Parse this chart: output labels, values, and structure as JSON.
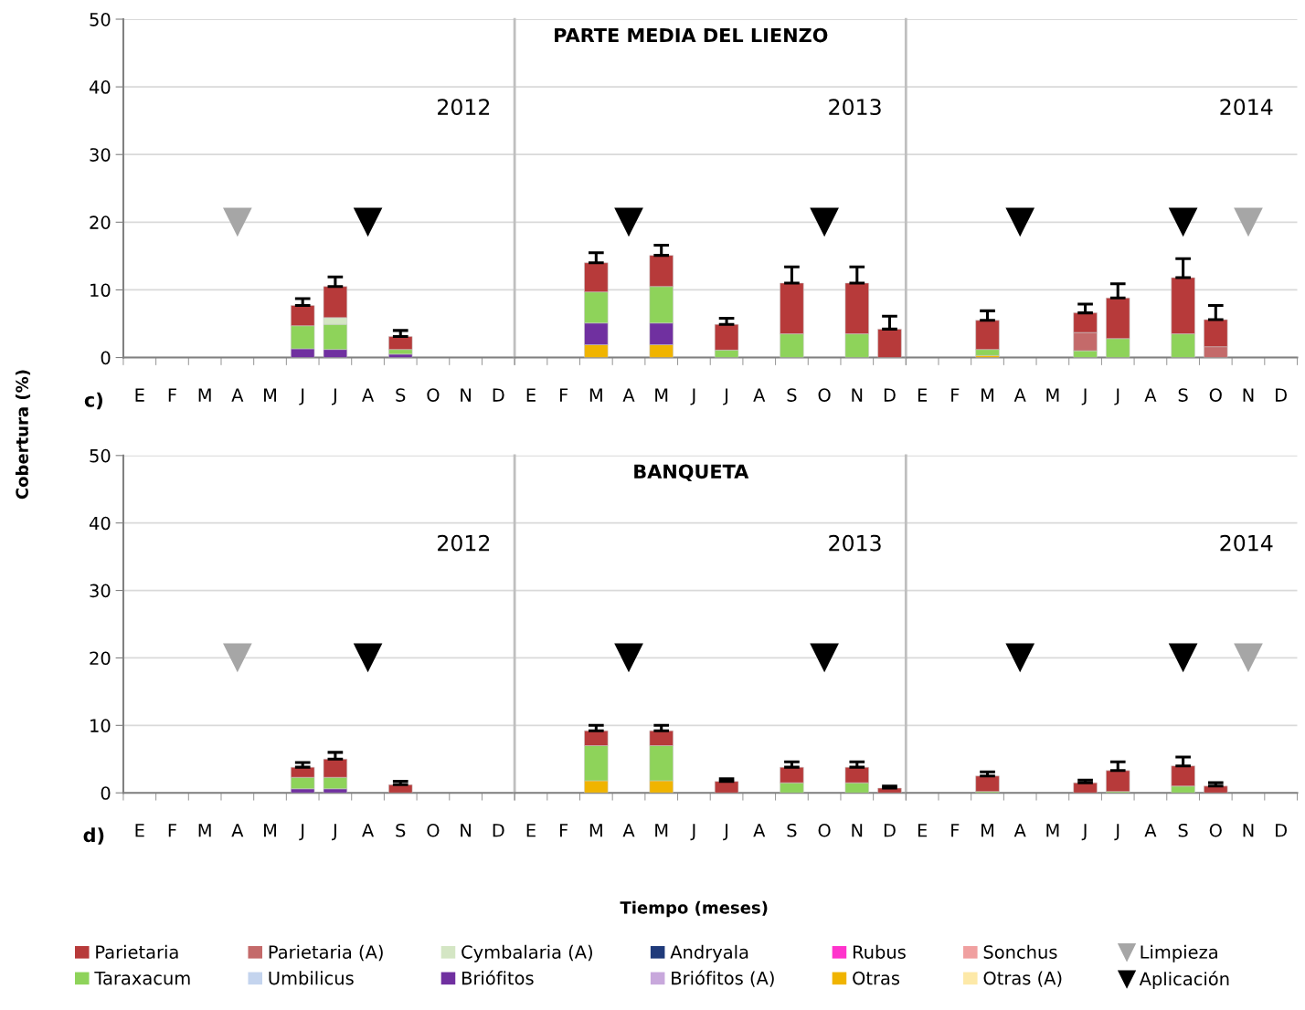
{
  "chart_data": [
    {
      "type": "bar",
      "stacked": true,
      "ylabel": "Cobertura (%)",
      "annotations": [
        "c)",
        "2012"
      ],
      "categories": [
        "E",
        "F",
        "M",
        "A",
        "M",
        "J",
        "J",
        "A",
        "S",
        "O",
        "N",
        "D"
      ],
      "ylim": [
        0,
        50
      ],
      "yticks": [
        0,
        10,
        20,
        30,
        40,
        50
      ],
      "grid": "y",
      "series": [
        {
          "color": "#7030a0",
          "values": [
            null,
            null,
            null,
            null,
            null,
            1.3,
            1.2,
            null,
            0.5,
            null,
            null,
            null
          ]
        },
        {
          "color": "#8ed35a",
          "values": [
            null,
            null,
            null,
            null,
            null,
            3.4,
            3.7,
            null,
            0.7,
            null,
            null,
            null
          ]
        },
        {
          "color": "#d4e6c4",
          "values": [
            null,
            null,
            null,
            null,
            null,
            null,
            1.0,
            null,
            null,
            null,
            null,
            null
          ]
        },
        {
          "color": "#b73a3a",
          "values": [
            null,
            null,
            null,
            null,
            null,
            3.0,
            4.6,
            null,
            1.9,
            null,
            null,
            null
          ],
          "errors": [
            null,
            null,
            null,
            null,
            null,
            [
              7.7,
              8.7
            ],
            [
              10.5,
              11.9
            ],
            null,
            [
              3.1,
              4.0
            ],
            null,
            null,
            null
          ]
        },
        {
          "type": "scatter",
          "marker": "triangle_down",
          "color": "#a6a6a6",
          "values": [
            null,
            null,
            null,
            20,
            null,
            null,
            null,
            null,
            null,
            null,
            null,
            null
          ]
        },
        {
          "type": "scatter",
          "marker": "triangle_down",
          "color": "#000000",
          "values": [
            null,
            null,
            null,
            null,
            null,
            null,
            null,
            20,
            null,
            null,
            null,
            null
          ]
        }
      ]
    },
    {
      "type": "bar",
      "stacked": true,
      "title": "PARTE MEDIA DEL LIENZO",
      "annotations": [
        "2013"
      ],
      "tick_labels": "x",
      "categories": [
        "E",
        "F",
        "M",
        "A",
        "M",
        "J",
        "J",
        "A",
        "S",
        "O",
        "N",
        "D"
      ],
      "ylim": [
        0,
        50
      ],
      "yticks": [
        0,
        10,
        20,
        30,
        40,
        50
      ],
      "grid": "y",
      "series": [
        {
          "color": "#f0b400",
          "values": [
            null,
            null,
            1.9,
            null,
            1.9,
            null,
            null,
            null,
            null,
            null,
            null,
            null
          ]
        },
        {
          "color": "#7030a0",
          "values": [
            null,
            null,
            3.2,
            null,
            3.2,
            null,
            null,
            null,
            null,
            null,
            null,
            null
          ]
        },
        {
          "color": "#8ed35a",
          "values": [
            null,
            null,
            4.6,
            null,
            5.4,
            null,
            1.1,
            null,
            3.5,
            null,
            3.5,
            null
          ]
        },
        {
          "color": "#b73a3a",
          "values": [
            null,
            null,
            4.3,
            null,
            4.6,
            null,
            3.8,
            null,
            7.5,
            null,
            7.5,
            4.2
          ],
          "errors": [
            null,
            null,
            [
              14.0,
              15.5
            ],
            null,
            [
              15.1,
              16.6
            ],
            null,
            [
              4.9,
              5.8
            ],
            null,
            [
              11.0,
              13.4
            ],
            null,
            [
              11.0,
              13.4
            ],
            [
              4.2,
              6.1
            ]
          ]
        },
        {
          "type": "scatter",
          "marker": "triangle_down",
          "color": "#000000",
          "values": [
            null,
            null,
            null,
            20,
            null,
            null,
            null,
            null,
            null,
            20,
            null,
            null
          ]
        }
      ]
    },
    {
      "type": "bar",
      "stacked": true,
      "annotations": [
        "2014"
      ],
      "tick_labels": "x",
      "categories": [
        "E",
        "F",
        "M",
        "A",
        "M",
        "J",
        "J",
        "A",
        "S",
        "O",
        "N",
        "D"
      ],
      "ylim": [
        0,
        50
      ],
      "yticks": [
        0,
        10,
        20,
        30,
        40,
        50
      ],
      "grid": "y",
      "series": [
        {
          "color": "#f0b400",
          "values": [
            null,
            null,
            0.3,
            null,
            null,
            null,
            null,
            null,
            null,
            null,
            null,
            null
          ]
        },
        {
          "color": "#8ed35a",
          "values": [
            null,
            null,
            0.9,
            null,
            null,
            1.0,
            2.8,
            null,
            3.5,
            null,
            null,
            null
          ]
        },
        {
          "color": "#c46a6a",
          "values": [
            null,
            null,
            null,
            null,
            null,
            2.7,
            null,
            null,
            null,
            1.6,
            null,
            null
          ]
        },
        {
          "color": "#b73a3a",
          "values": [
            null,
            null,
            4.3,
            null,
            null,
            2.9,
            6.0,
            null,
            8.3,
            4.0,
            null,
            null
          ],
          "errors": [
            null,
            null,
            [
              5.5,
              6.9
            ],
            null,
            null,
            [
              6.6,
              7.9
            ],
            [
              8.8,
              10.9
            ],
            null,
            [
              11.8,
              14.6
            ],
            [
              5.6,
              7.7
            ],
            null,
            null
          ]
        },
        {
          "type": "scatter",
          "marker": "triangle_down",
          "color": "#a6a6a6",
          "values": [
            null,
            null,
            null,
            null,
            null,
            null,
            null,
            null,
            null,
            null,
            20,
            null
          ]
        },
        {
          "type": "scatter",
          "marker": "triangle_down",
          "color": "#000000",
          "values": [
            null,
            null,
            null,
            20,
            null,
            null,
            null,
            null,
            20,
            null,
            null,
            null
          ]
        }
      ]
    },
    {
      "type": "bar",
      "stacked": true,
      "annotations": [
        "d)",
        "2012"
      ],
      "categories": [
        "E",
        "F",
        "M",
        "A",
        "M",
        "J",
        "J",
        "A",
        "S",
        "O",
        "N",
        "D"
      ],
      "ylim": [
        0,
        50
      ],
      "yticks": [
        0,
        10,
        20,
        30,
        40,
        50
      ],
      "grid": "y",
      "series": [
        {
          "color": "#7030a0",
          "values": [
            null,
            null,
            null,
            null,
            null,
            0.6,
            0.6,
            null,
            null,
            null,
            null,
            null
          ]
        },
        {
          "color": "#8ed35a",
          "values": [
            null,
            null,
            null,
            null,
            null,
            1.7,
            1.7,
            null,
            null,
            null,
            null,
            null
          ]
        },
        {
          "color": "#b73a3a",
          "values": [
            null,
            null,
            null,
            null,
            null,
            1.5,
            2.7,
            null,
            1.2,
            null,
            null,
            null
          ],
          "errors": [
            null,
            null,
            null,
            null,
            null,
            [
              3.8,
              4.5
            ],
            [
              5.0,
              6.0
            ],
            null,
            [
              1.2,
              1.7
            ],
            null,
            null,
            null
          ]
        },
        {
          "type": "scatter",
          "marker": "triangle_down",
          "color": "#a6a6a6",
          "values": [
            null,
            null,
            null,
            20,
            null,
            null,
            null,
            null,
            null,
            null,
            null,
            null
          ]
        },
        {
          "type": "scatter",
          "marker": "triangle_down",
          "color": "#000000",
          "values": [
            null,
            null,
            null,
            null,
            null,
            null,
            null,
            20,
            null,
            null,
            null,
            null
          ]
        }
      ]
    },
    {
      "type": "bar",
      "stacked": true,
      "title": "BANQUETA",
      "xlabel": "Tiempo (meses)",
      "annotations": [
        "2013"
      ],
      "tick_labels": "x",
      "categories": [
        "E",
        "F",
        "M",
        "A",
        "M",
        "J",
        "J",
        "A",
        "S",
        "O",
        "N",
        "D"
      ],
      "ylim": [
        0,
        50
      ],
      "yticks": [
        0,
        10,
        20,
        30,
        40,
        50
      ],
      "grid": "y",
      "series": [
        {
          "color": "#f0b400",
          "values": [
            null,
            null,
            1.8,
            null,
            1.8,
            null,
            null,
            null,
            null,
            null,
            null,
            null
          ]
        },
        {
          "color": "#8ed35a",
          "values": [
            null,
            null,
            5.2,
            null,
            5.2,
            null,
            null,
            null,
            1.5,
            null,
            1.5,
            null
          ]
        },
        {
          "color": "#b73a3a",
          "values": [
            null,
            null,
            2.2,
            null,
            2.2,
            null,
            1.7,
            null,
            2.3,
            null,
            2.3,
            0.7
          ],
          "errors": [
            null,
            null,
            [
              9.2,
              10.0
            ],
            null,
            [
              9.2,
              10.0
            ],
            null,
            [
              1.7,
              2.1
            ],
            null,
            [
              3.8,
              4.6
            ],
            null,
            [
              3.8,
              4.6
            ],
            [
              0.7,
              1.0
            ]
          ]
        },
        {
          "type": "scatter",
          "marker": "triangle_down",
          "color": "#000000",
          "values": [
            null,
            null,
            null,
            20,
            null,
            null,
            null,
            null,
            null,
            20,
            null,
            null
          ]
        }
      ]
    },
    {
      "type": "bar",
      "stacked": true,
      "annotations": [
        "2014"
      ],
      "tick_labels": "x",
      "legend": "bottom",
      "categories": [
        "E",
        "F",
        "M",
        "A",
        "M",
        "J",
        "J",
        "A",
        "S",
        "O",
        "N",
        "D"
      ],
      "ylim": [
        0,
        50
      ],
      "yticks": [
        0,
        10,
        20,
        30,
        40,
        50
      ],
      "grid": "y",
      "series": [
        {
          "name": "Otras (A)",
          "color": "#fde9a8",
          "values": [
            null,
            null,
            null,
            null,
            null,
            null,
            null,
            null,
            null,
            null,
            null,
            null
          ]
        },
        {
          "name": "Otras",
          "color": "#f0b400",
          "values": [
            null,
            null,
            null,
            null,
            null,
            null,
            null,
            null,
            null,
            null,
            null,
            null
          ]
        },
        {
          "name": "Briófitos (A)",
          "color": "#c8a8dc",
          "values": [
            null,
            null,
            null,
            null,
            null,
            null,
            null,
            null,
            null,
            null,
            null,
            null
          ]
        },
        {
          "name": "Briófitos",
          "color": "#7030a0",
          "values": [
            null,
            null,
            null,
            null,
            null,
            null,
            null,
            null,
            null,
            null,
            null,
            null
          ]
        },
        {
          "name": "Umbilicus",
          "color": "#c4d4ee",
          "values": [
            null,
            null,
            null,
            null,
            null,
            null,
            null,
            null,
            null,
            null,
            null,
            null
          ]
        },
        {
          "name": "Taraxacum",
          "color": "#8ed35a",
          "values": [
            null,
            null,
            0.2,
            null,
            null,
            null,
            0.2,
            null,
            1.0,
            null,
            null,
            null
          ]
        },
        {
          "name": "Sonchus",
          "color": "#f0a0a0",
          "values": [
            null,
            null,
            null,
            null,
            null,
            null,
            null,
            null,
            null,
            null,
            null,
            null
          ]
        },
        {
          "name": "Rubus",
          "color": "#ff33cc",
          "values": [
            null,
            null,
            null,
            null,
            null,
            null,
            null,
            null,
            null,
            null,
            null,
            null
          ]
        },
        {
          "name": "Andryala",
          "color": "#1f3a7a",
          "values": [
            null,
            null,
            null,
            null,
            null,
            null,
            null,
            null,
            null,
            null,
            null,
            null
          ]
        },
        {
          "name": "Cymbalaria (A)",
          "color": "#d4e6c4",
          "values": [
            null,
            null,
            null,
            null,
            null,
            null,
            null,
            null,
            null,
            null,
            null,
            null
          ]
        },
        {
          "name": "Parietaria (A)",
          "color": "#c46a6a",
          "values": [
            null,
            null,
            null,
            null,
            null,
            null,
            null,
            null,
            null,
            null,
            null,
            null
          ]
        },
        {
          "name": "Parietaria",
          "color": "#b73a3a",
          "values": [
            null,
            null,
            2.3,
            null,
            null,
            1.5,
            3.1,
            null,
            3.0,
            1.0,
            null,
            null
          ],
          "errors": [
            null,
            null,
            [
              2.5,
              3.1
            ],
            null,
            null,
            [
              1.5,
              1.9
            ],
            [
              3.3,
              4.6
            ],
            null,
            [
              4.0,
              5.3
            ],
            [
              1.0,
              1.5
            ],
            null,
            null
          ]
        },
        {
          "name": "Limpieza",
          "type": "scatter",
          "marker": "triangle_down",
          "color": "#a6a6a6",
          "values": [
            null,
            null,
            null,
            null,
            null,
            null,
            null,
            null,
            null,
            null,
            20,
            null
          ]
        },
        {
          "name": "Aplicación",
          "type": "scatter",
          "marker": "triangle_down",
          "color": "#000000",
          "values": [
            null,
            null,
            null,
            20,
            null,
            null,
            null,
            null,
            20,
            null,
            null,
            null
          ]
        }
      ]
    }
  ]
}
